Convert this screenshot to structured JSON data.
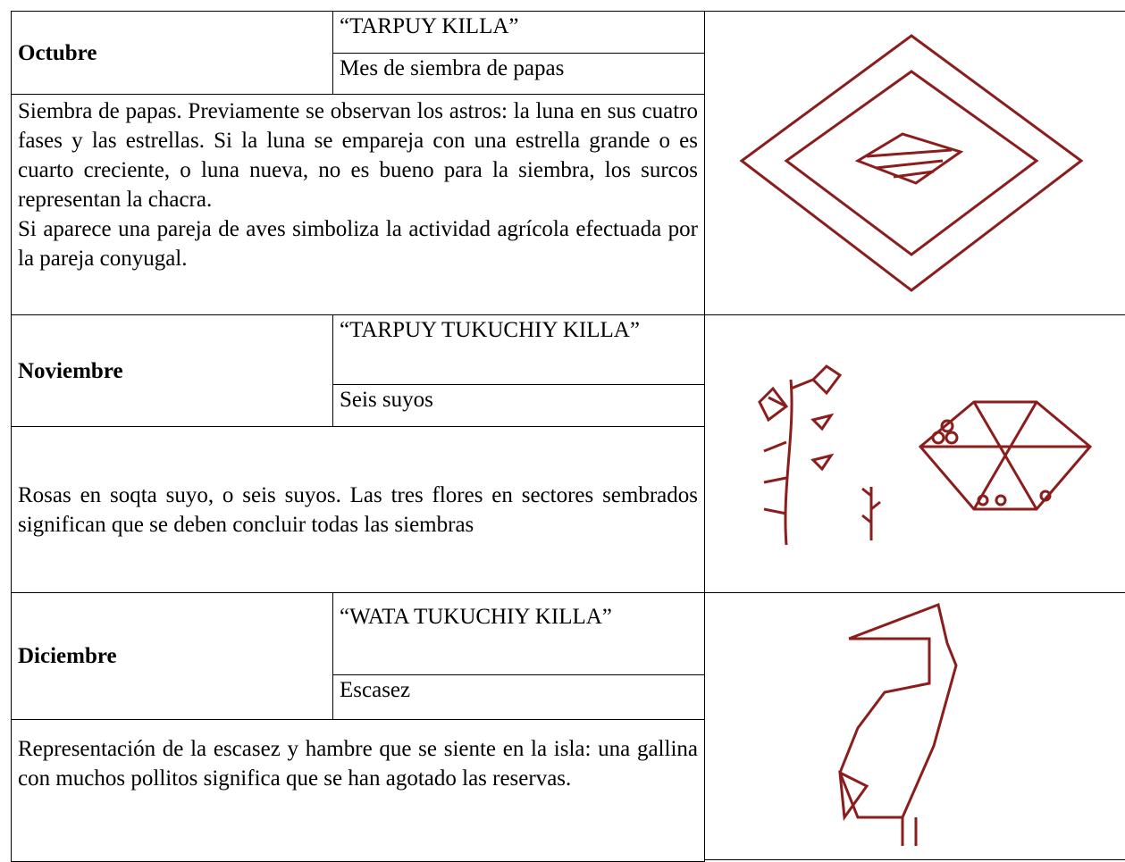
{
  "rows": [
    {
      "month": "Octubre",
      "name": "“TARPUY KILLA”",
      "meaning": "Mes de siembra de papas",
      "description": [
        "Siembra de papas. Previamente se observan los astros: la luna en sus cuatro fases y las estrellas. Si la luna se empareja con una estrella grande o es cuarto creciente, o luna nueva, no es bueno para la siembra, los surcos representan la chacra.",
        "Si aparece una pareja de aves simboliza la actividad agrícola efectuada por la pareja conyugal."
      ]
    },
    {
      "month": "Noviembre",
      "name": "“TARPUY TUKUCHIY KILLA”",
      "meaning": "Seis suyos",
      "description": [
        "Rosas en soqta suyo, o seis suyos. Las tres flores en sectores sembrados significan que se deben concluir todas las siembras"
      ]
    },
    {
      "month": "Diciembre",
      "name": "“WATA TUKUCHIY KILLA”",
      "meaning": "Escasez",
      "description": [
        "Representación de la escasez y hambre que se siente en la isla: una gallina con muchos pollitos significa que se han agotado las reservas."
      ]
    }
  ]
}
